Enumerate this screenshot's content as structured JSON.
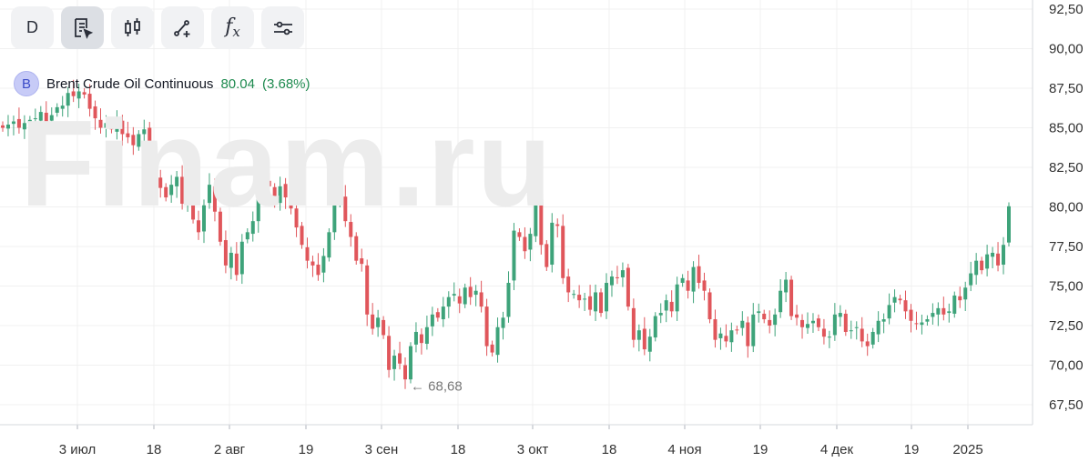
{
  "toolbar": {
    "interval_label": "D",
    "buttons": [
      {
        "name": "interval-button",
        "label": "D"
      },
      {
        "name": "chart-type-icon",
        "icon": "document-pointer-icon"
      },
      {
        "name": "candles-icon",
        "icon": "candlestick-icon"
      },
      {
        "name": "drawing-icon",
        "icon": "line-tool-icon"
      },
      {
        "name": "indicators-icon",
        "label": "f",
        "sub": "x"
      },
      {
        "name": "settings-icon",
        "icon": "sliders-icon"
      }
    ]
  },
  "legend": {
    "avatar_letter": "B",
    "symbol": "Brent Crude Oil Continuous",
    "price": "80.04",
    "change": "(3.68%)"
  },
  "watermark": "Finam.ru",
  "colors": {
    "up": "#3ea37a",
    "down": "#e0565b",
    "grid": "#f0f0f0",
    "accent": "#1e8a4f"
  },
  "chart_data": {
    "type": "candlestick",
    "y_ticks": [
      "92,50",
      "90,00",
      "87,50",
      "85,00",
      "82,50",
      "80,00",
      "77,50",
      "75,00",
      "72,50",
      "70,00",
      "67,50"
    ],
    "y_values": [
      92.5,
      90,
      87.5,
      85,
      82.5,
      80,
      77.5,
      75,
      72.5,
      70,
      67.5
    ],
    "x_ticks": [
      "3 июл",
      "18",
      "2 авг",
      "19",
      "3 сен",
      "18",
      "3 окт",
      "18",
      "4 ноя",
      "19",
      "4 дек",
      "19",
      "2025"
    ],
    "ylim": [
      66.3,
      93.2
    ],
    "min_annotation": {
      "label": "← 68,68",
      "value": 68.68
    },
    "closes": [
      85.0,
      85.2,
      85.4,
      85.0,
      85.3,
      85.5,
      85.6,
      86.0,
      85.4,
      85.8,
      86.3,
      86.4,
      87.2,
      87.0,
      87.3,
      87.1,
      86.2,
      85.6,
      85.0,
      85.3,
      84.9,
      85.5,
      84.6,
      84.4,
      83.9,
      84.6,
      84.9,
      82.5,
      81.9,
      81.2,
      80.6,
      81.4,
      81.9,
      80.2,
      81.2,
      79.2,
      78.4,
      80.1,
      81.4,
      79.7,
      77.8,
      76.3,
      77.1,
      75.7,
      77.8,
      78.4,
      79.1,
      80.5,
      81.8,
      81.3,
      80.2,
      81.3,
      80.6,
      79.9,
      78.7,
      77.6,
      76.6,
      76.3,
      75.7,
      76.9,
      78.4,
      80.6,
      80.8,
      79.1,
      78.1,
      76.6,
      76.4,
      73.2,
      72.3,
      73.0,
      71.9,
      69.7,
      70.6,
      70.1,
      69.1,
      71.2,
      72.1,
      71.4,
      72.4,
      73.2,
      73.0,
      73.7,
      74.3,
      74.5,
      73.9,
      74.9,
      74.3,
      74.7,
      73.7,
      71.2,
      70.8,
      72.4,
      73.0,
      75.2,
      78.5,
      78.1,
      77.2,
      78.3,
      81.2,
      77.6,
      76.2,
      79.0,
      78.8,
      75.5,
      74.6,
      74.5,
      74.1,
      74.2,
      73.5,
      74.6,
      73.3,
      75.2,
      75.6,
      75.5,
      76.0,
      73.7,
      71.6,
      72.2,
      71.0,
      71.8,
      73.1,
      73.3,
      74.1,
      73.4,
      75.1,
      75.5,
      74.7,
      76.2,
      75.2,
      74.7,
      72.9,
      71.6,
      72.0,
      71.5,
      72.2,
      72.2,
      72.8,
      71.2,
      73.2,
      73.4,
      72.9,
      72.5,
      73.2,
      74.7,
      75.4,
      73.1,
      73.0,
      72.4,
      72.6,
      72.8,
      72.4,
      71.8,
      71.8,
      73.2,
      73.3,
      72.1,
      72.2,
      72.4,
      71.5,
      71.2,
      72.1,
      72.8,
      72.9,
      73.8,
      74.3,
      74.1,
      73.4,
      72.8,
      72.6,
      72.7,
      72.9,
      73.3,
      73.6,
      73.2,
      73.4,
      74.4,
      74.1,
      74.9,
      75.8,
      76.6,
      76.0,
      77.0,
      77.1,
      76.3,
      77.6,
      80.04
    ],
    "series_note": "daily OHLC, Jun-2024 to Jan-2025"
  }
}
